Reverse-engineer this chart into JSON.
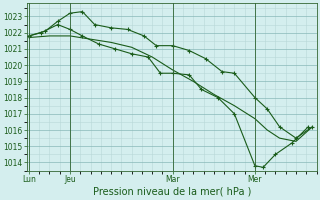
{
  "bg_color": "#d4eeee",
  "plot_bg_color": "#d4eeee",
  "grid_color_minor": "#b8d8d8",
  "grid_color_major": "#88b8b8",
  "line_color": "#1a5c1a",
  "title": "Pression niveau de la mer( hPa )",
  "ylim": [
    1013.5,
    1023.8
  ],
  "yticks": [
    1014,
    1015,
    1016,
    1017,
    1018,
    1019,
    1020,
    1021,
    1022,
    1023
  ],
  "xtick_labels": [
    "Lun",
    "Jeu",
    "Mar",
    "Mer"
  ],
  "xtick_positions": [
    0.0,
    1.0,
    3.5,
    5.5
  ],
  "xlim": [
    -0.05,
    7.0
  ],
  "series1_x": [
    0.0,
    0.3,
    0.7,
    1.0,
    1.3,
    1.7,
    2.1,
    2.5,
    2.9,
    3.2,
    3.5,
    3.9,
    4.2,
    4.6,
    5.0,
    5.5,
    5.7,
    6.0,
    6.4,
    6.8
  ],
  "series1_y": [
    1021.8,
    1022.0,
    1022.5,
    1022.2,
    1021.8,
    1021.3,
    1021.0,
    1020.7,
    1020.5,
    1019.5,
    1019.5,
    1019.4,
    1018.5,
    1018.0,
    1017.0,
    1013.8,
    1013.7,
    1014.5,
    1015.2,
    1016.2
  ],
  "series2_x": [
    0.0,
    0.4,
    0.7,
    1.0,
    1.3,
    1.6,
    2.0,
    2.4,
    2.8,
    3.1,
    3.5,
    3.9,
    4.3,
    4.7,
    5.0,
    5.5,
    5.8,
    6.1,
    6.5,
    6.9
  ],
  "series2_y": [
    1021.8,
    1022.1,
    1022.7,
    1023.2,
    1023.3,
    1022.5,
    1022.3,
    1022.2,
    1021.8,
    1021.2,
    1021.2,
    1020.9,
    1020.4,
    1019.6,
    1019.5,
    1018.0,
    1017.3,
    1016.2,
    1015.5,
    1016.2
  ],
  "series3_x": [
    0.0,
    0.5,
    1.0,
    1.5,
    2.0,
    2.5,
    3.0,
    3.5,
    4.0,
    4.5,
    5.0,
    5.5,
    5.8,
    6.1,
    6.5,
    6.9
  ],
  "series3_y": [
    1021.7,
    1021.8,
    1021.8,
    1021.6,
    1021.4,
    1021.1,
    1020.5,
    1019.7,
    1019.0,
    1018.2,
    1017.5,
    1016.7,
    1016.0,
    1015.5,
    1015.3,
    1016.2
  ],
  "spine_color": "#336633",
  "title_color": "#1a5c1a",
  "tick_color": "#1a5c1a",
  "title_fontsize": 7.0,
  "tick_fontsize": 5.5
}
